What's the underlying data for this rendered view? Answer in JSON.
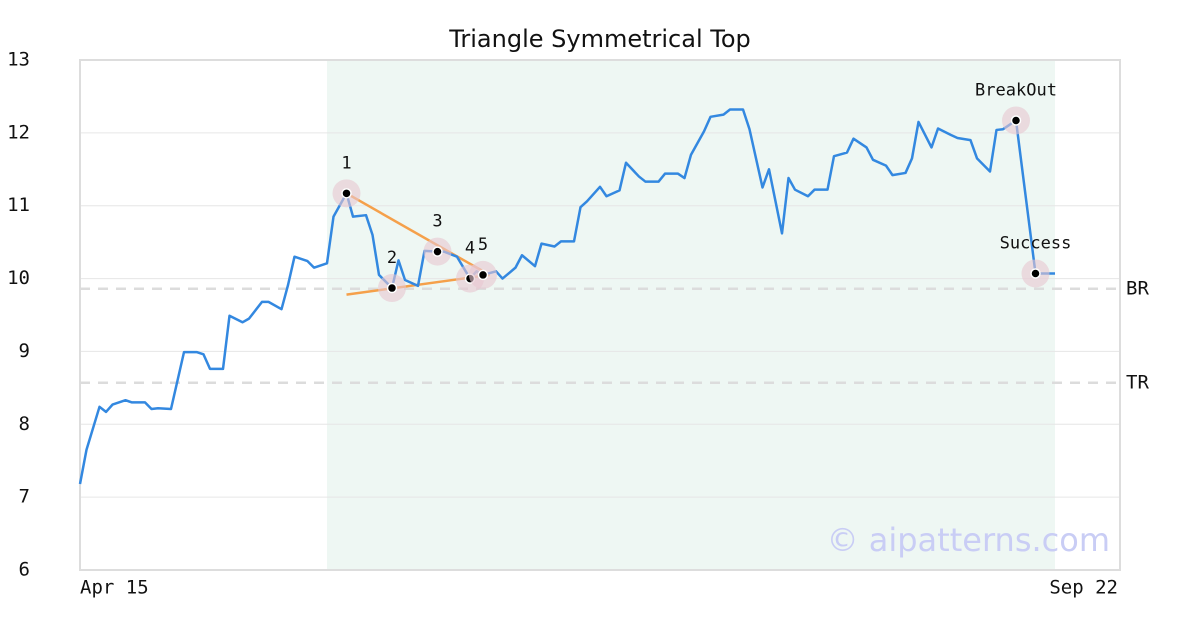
{
  "chart_data": {
    "type": "line",
    "title": "Triangle Symmetrical Top",
    "color": "#3388e0",
    "x": [
      0,
      1,
      3,
      4,
      5,
      7,
      8,
      10,
      11,
      12,
      14,
      16,
      18,
      19,
      20,
      22,
      23,
      25,
      26,
      28,
      29,
      31,
      32,
      33,
      35,
      36,
      38,
      39,
      41,
      42,
      44,
      45,
      46,
      48,
      49,
      50,
      52,
      53,
      55,
      56,
      58,
      60,
      61,
      62,
      64,
      65,
      67,
      68,
      70,
      71,
      73,
      74,
      76,
      77,
      78,
      80,
      81,
      83,
      84,
      86,
      87,
      89,
      90,
      92,
      93,
      94,
      96,
      97,
      99,
      100,
      102,
      103,
      105,
      106,
      108,
      109,
      110,
      112,
      113,
      115,
      116,
      118,
      119,
      121,
      122,
      124,
      125,
      127,
      128,
      129,
      131,
      132,
      134,
      135,
      137,
      138,
      140,
      141,
      142,
      144,
      147,
      150
    ],
    "values": [
      7.18,
      7.65,
      8.24,
      8.17,
      8.27,
      8.33,
      8.3,
      8.3,
      8.21,
      8.22,
      8.21,
      8.99,
      8.99,
      8.96,
      8.76,
      8.76,
      9.49,
      9.4,
      9.45,
      9.68,
      9.68,
      9.58,
      9.91,
      10.3,
      10.24,
      10.15,
      10.21,
      10.85,
      11.17,
      10.85,
      10.87,
      10.6,
      10.05,
      9.87,
      10.25,
      9.98,
      9.9,
      10.38,
      10.37,
      10.37,
      10.3,
      10.0,
      10.1,
      10.05,
      10.1,
      10.0,
      10.15,
      10.32,
      10.17,
      10.48,
      10.44,
      10.51,
      10.51,
      10.98,
      11.06,
      11.26,
      11.13,
      11.21,
      11.59,
      11.4,
      11.33,
      11.33,
      11.44,
      11.44,
      11.38,
      11.7,
      12.02,
      12.22,
      12.25,
      12.32,
      12.32,
      12.05,
      11.25,
      11.5,
      10.62,
      11.38,
      11.22,
      11.13,
      11.22,
      11.22,
      11.68,
      11.73,
      11.92,
      11.8,
      11.63,
      11.55,
      11.42,
      11.45,
      11.65,
      12.15,
      11.8,
      12.06,
      11.97,
      11.93,
      11.9,
      11.65,
      11.47,
      12.04,
      12.05,
      12.17,
      10.07,
      10.07
    ],
    "xlim": [
      0,
      160
    ],
    "xticks": [
      {
        "value": 0,
        "label": "Apr 15"
      },
      {
        "value": 160,
        "label": "Sep 22"
      }
    ],
    "ylim": [
      6,
      13
    ],
    "yticks": [
      6,
      7,
      8,
      9,
      10,
      11,
      12,
      13
    ],
    "grid": true,
    "shaded_region": {
      "x": [
        38,
        150
      ],
      "color": "#eef7f3"
    },
    "levels": [
      {
        "label": "BR",
        "value": 9.86
      },
      {
        "label": "TR",
        "value": 8.57
      }
    ],
    "trend_color": "#f5a04a",
    "trendlines": [
      {
        "x": [
          41,
          63
        ],
        "y": [
          11.17,
          10.05
        ]
      },
      {
        "x": [
          41,
          63
        ],
        "y": [
          9.78,
          10.05
        ]
      }
    ],
    "points": [
      {
        "label": "1",
        "x": 41,
        "y": 11.17
      },
      {
        "label": "2",
        "x": 48,
        "y": 9.87
      },
      {
        "label": "3",
        "x": 55,
        "y": 10.37
      },
      {
        "label": "4",
        "x": 60,
        "y": 10.0
      },
      {
        "label": "5",
        "x": 62,
        "y": 10.05
      },
      {
        "label": "BreakOut",
        "x": 144,
        "y": 12.17
      },
      {
        "label": "Success",
        "x": 147,
        "y": 10.07
      }
    ],
    "watermark": "© aipatterns.com"
  }
}
